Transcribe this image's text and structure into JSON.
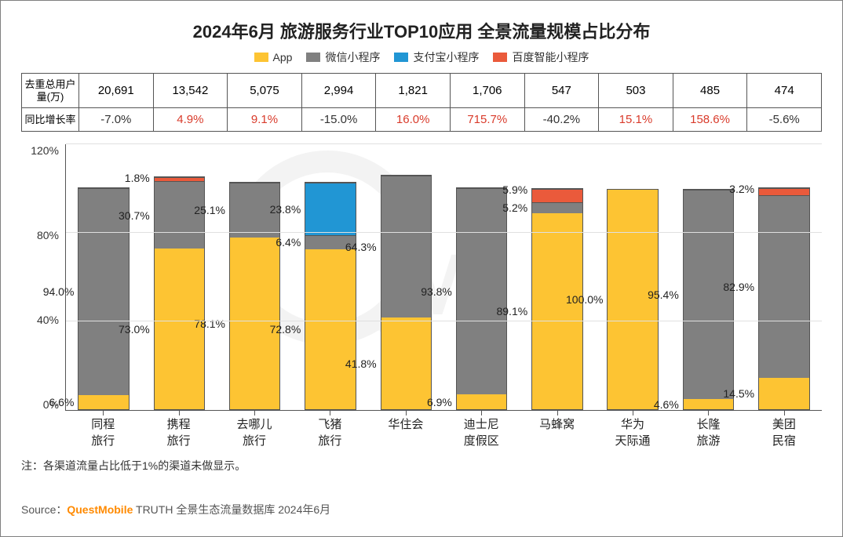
{
  "title": "2024年6月 旅游服务行业TOP10应用 全景流量规模占比分布",
  "legend": [
    {
      "label": "App",
      "color": "#fdc433"
    },
    {
      "label": "微信小程序",
      "color": "#808080"
    },
    {
      "label": "支付宝小程序",
      "color": "#2196d4"
    },
    {
      "label": "百度智能小程序",
      "color": "#ea5a3b"
    }
  ],
  "table": {
    "row1_header": "去重总用户量(万)",
    "row2_header": "同比增长率",
    "users": [
      "20,691",
      "13,542",
      "5,075",
      "2,994",
      "1,821",
      "1,706",
      "547",
      "503",
      "485",
      "474"
    ],
    "growth": [
      "-7.0%",
      "4.9%",
      "9.1%",
      "-15.0%",
      "16.0%",
      "715.7%",
      "-40.2%",
      "15.1%",
      "158.6%",
      "-5.6%"
    ],
    "growth_positive": [
      false,
      true,
      true,
      false,
      true,
      true,
      false,
      true,
      true,
      false
    ]
  },
  "chart": {
    "type": "stacked-bar-percent",
    "ylim_max": 120,
    "ytick_step": 40,
    "yticks": [
      "120%",
      "80%",
      "40%",
      "0%"
    ],
    "grid_color": "#e0e0e0",
    "series_colors": {
      "app": "#fdc433",
      "wechat": "#808080",
      "alipay": "#2196d4",
      "baidu": "#ea5a3b"
    },
    "categories": [
      {
        "name": "同程\n旅行",
        "app": 6.6,
        "wechat": 94.0,
        "alipay": 0,
        "baidu": 0,
        "labels": {
          "app": "6.6%",
          "wechat": "94.0%"
        }
      },
      {
        "name": "携程\n旅行",
        "app": 73.0,
        "wechat": 30.7,
        "alipay": 0,
        "baidu": 1.8,
        "labels": {
          "app": "73.0%",
          "wechat": "30.7%",
          "baidu": "1.8%"
        }
      },
      {
        "name": "去哪儿\n旅行",
        "app": 78.1,
        "wechat": 25.1,
        "alipay": 0,
        "baidu": 0,
        "labels": {
          "app": "78.1%",
          "wechat": "25.1%"
        }
      },
      {
        "name": "飞猪\n旅行",
        "app": 72.8,
        "wechat": 6.4,
        "alipay": 23.8,
        "baidu": 0,
        "labels": {
          "app": "72.8%",
          "wechat": "6.4%",
          "alipay": "23.8%"
        }
      },
      {
        "name": "华住会",
        "app": 41.8,
        "wechat": 64.3,
        "alipay": 0,
        "baidu": 0,
        "labels": {
          "app": "41.8%",
          "wechat": "64.3%"
        }
      },
      {
        "name": "迪士尼\n度假区",
        "app": 6.9,
        "wechat": 93.8,
        "alipay": 0,
        "baidu": 0,
        "labels": {
          "app": "6.9%",
          "wechat": "93.8%"
        }
      },
      {
        "name": "马蜂窝",
        "app": 89.1,
        "wechat": 5.2,
        "alipay": 0,
        "baidu": 5.9,
        "labels": {
          "app": "89.1%",
          "wechat": "5.2%",
          "baidu": "5.9%"
        }
      },
      {
        "name": "华为\n天际通",
        "app": 100.0,
        "wechat": 0,
        "alipay": 0,
        "baidu": 0,
        "labels": {
          "app": "100.0%"
        }
      },
      {
        "name": "长隆\n旅游",
        "app": 4.6,
        "wechat": 95.4,
        "alipay": 0,
        "baidu": 0,
        "labels": {
          "app": "4.6%",
          "wechat": "95.4%"
        }
      },
      {
        "name": "美团\n民宿",
        "app": 14.5,
        "wechat": 82.9,
        "alipay": 0,
        "baidu": 3.2,
        "labels": {
          "app": "14.5%",
          "wechat": "82.9%",
          "baidu": "3.2%"
        }
      }
    ]
  },
  "note": "注：各渠道流量占比低于1%的渠道未做显示。",
  "source_prefix": "Source：",
  "source_brand": "QuestMobile",
  "source_suffix": " TRUTH 全景生态流量数据库 2024年6月"
}
